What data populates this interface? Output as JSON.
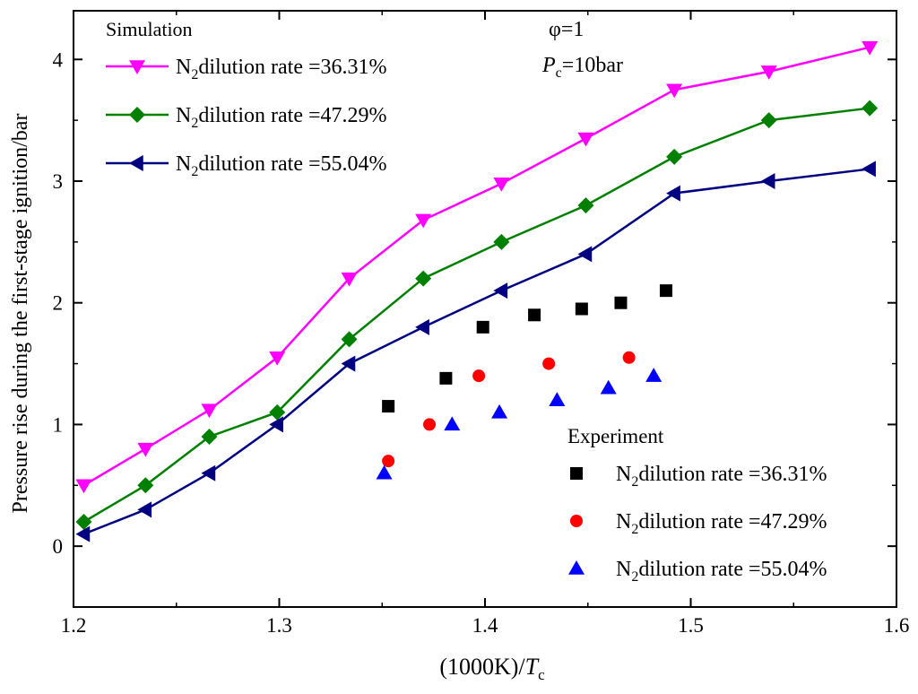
{
  "chart_data": {
    "type": "line",
    "xlabel": {
      "main": "(1000K)/",
      "var": "T",
      "sub": "c"
    },
    "ylabel": "Pressure rise during the first-stage ignition/bar",
    "xlim": [
      1.2,
      1.6
    ],
    "ylim": [
      -0.5,
      4.4
    ],
    "x_ticks": [
      1.2,
      1.3,
      1.4,
      1.5,
      1.6
    ],
    "y_ticks": [
      0,
      1,
      2,
      3,
      4
    ],
    "annotations": {
      "phi": "φ=1",
      "pc_var": "P",
      "pc_sub": "c",
      "pc_val": "=10bar"
    },
    "legend_simulation": {
      "title": "Simulation",
      "position": "top-left"
    },
    "legend_experiment": {
      "title": "Experiment",
      "position": "bottom-right"
    },
    "series": [
      {
        "name": "N2 dilution rate =36.31%",
        "label_pre": "N",
        "label_sub": "2",
        "label_post": "dilution rate =36.31%",
        "group": "simulation",
        "color": "#ff00ff",
        "marker": "triangle-down",
        "x": [
          1.205,
          1.235,
          1.266,
          1.299,
          1.334,
          1.37,
          1.408,
          1.449,
          1.492,
          1.538,
          1.587
        ],
        "y": [
          0.5,
          0.8,
          1.12,
          1.55,
          2.2,
          2.68,
          2.98,
          3.35,
          3.75,
          3.9,
          4.1
        ]
      },
      {
        "name": "N2 dilution rate =47.29%",
        "label_pre": "N",
        "label_sub": "2",
        "label_post": "dilution rate =47.29%",
        "group": "simulation",
        "color": "#008000",
        "marker": "diamond",
        "x": [
          1.205,
          1.235,
          1.266,
          1.299,
          1.334,
          1.37,
          1.408,
          1.449,
          1.492,
          1.538,
          1.587
        ],
        "y": [
          0.2,
          0.5,
          0.9,
          1.1,
          1.7,
          2.2,
          2.5,
          2.8,
          3.2,
          3.5,
          3.6
        ]
      },
      {
        "name": "N2 dilution rate =55.04%",
        "label_pre": "N",
        "label_sub": "2",
        "label_post": "dilution rate =55.04%",
        "group": "simulation",
        "color": "#000080",
        "marker": "triangle-left",
        "x": [
          1.205,
          1.235,
          1.266,
          1.299,
          1.334,
          1.37,
          1.408,
          1.449,
          1.492,
          1.538,
          1.587
        ],
        "y": [
          0.1,
          0.3,
          0.6,
          1.0,
          1.5,
          1.8,
          2.1,
          2.4,
          2.9,
          3.0,
          3.1
        ]
      },
      {
        "name": "N2 dilution rate =36.31% (exp)",
        "label_pre": "N",
        "label_sub": "2",
        "label_post": "dilution rate =36.31%",
        "group": "experiment",
        "color": "#000000",
        "marker": "square",
        "x": [
          1.353,
          1.381,
          1.399,
          1.424,
          1.447,
          1.466,
          1.488
        ],
        "y": [
          1.15,
          1.38,
          1.8,
          1.9,
          1.95,
          2.0,
          2.1
        ]
      },
      {
        "name": "N2 dilution rate =47.29% (exp)",
        "label_pre": "N",
        "label_sub": "2",
        "label_post": "dilution rate =47.29%",
        "group": "experiment",
        "color": "#ff0000",
        "marker": "circle",
        "x": [
          1.353,
          1.373,
          1.397,
          1.431,
          1.47
        ],
        "y": [
          0.7,
          1.0,
          1.4,
          1.5,
          1.55
        ]
      },
      {
        "name": "N2 dilution rate =55.04% (exp)",
        "label_pre": "N",
        "label_sub": "2",
        "label_post": "dilution rate =55.04%",
        "group": "experiment",
        "color": "#0000ff",
        "marker": "triangle-up",
        "x": [
          1.351,
          1.384,
          1.407,
          1.435,
          1.46,
          1.482
        ],
        "y": [
          0.6,
          1.0,
          1.1,
          1.2,
          1.3,
          1.4
        ]
      }
    ]
  }
}
